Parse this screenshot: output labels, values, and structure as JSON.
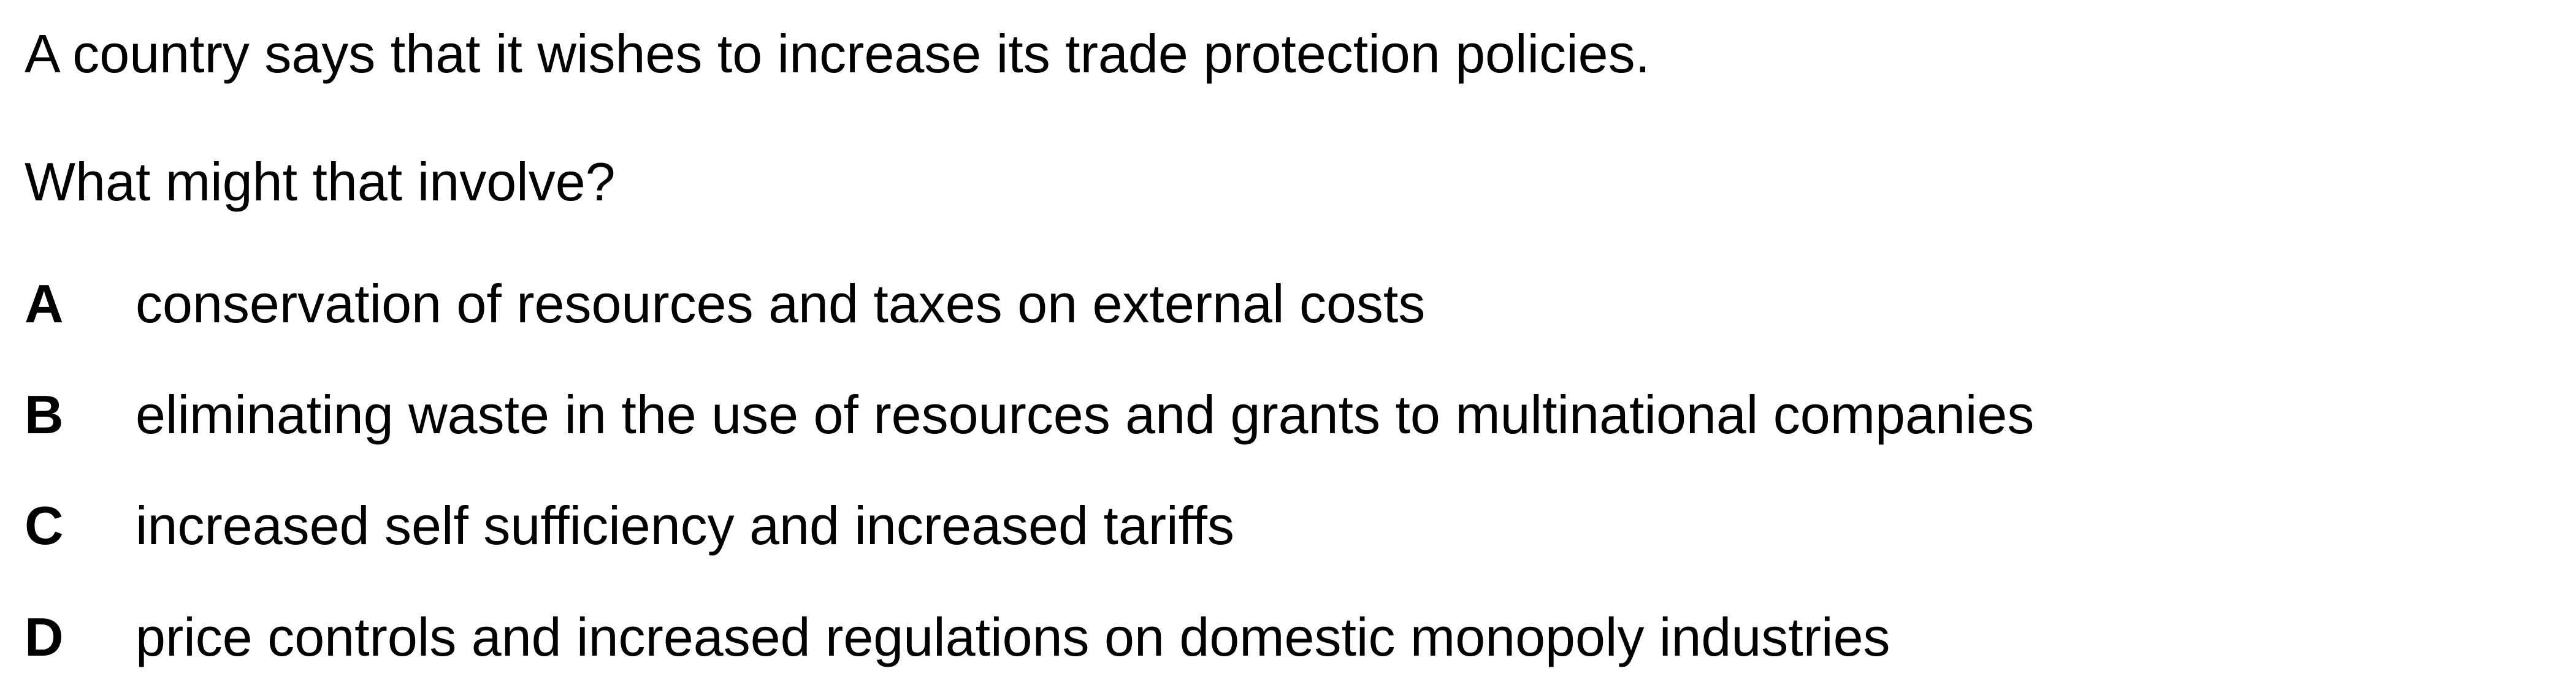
{
  "stem": "A country says that it wishes to increase its trade protection policies.",
  "question": "What might that involve?",
  "options": [
    {
      "letter": "A",
      "text": "conservation of resources and taxes on external costs"
    },
    {
      "letter": "B",
      "text": "eliminating waste in the use of resources and grants to multinational companies"
    },
    {
      "letter": "C",
      "text": "increased self sufficiency and increased tariffs"
    },
    {
      "letter": "D",
      "text": "price controls and increased regulations on domestic monopoly industries"
    }
  ]
}
